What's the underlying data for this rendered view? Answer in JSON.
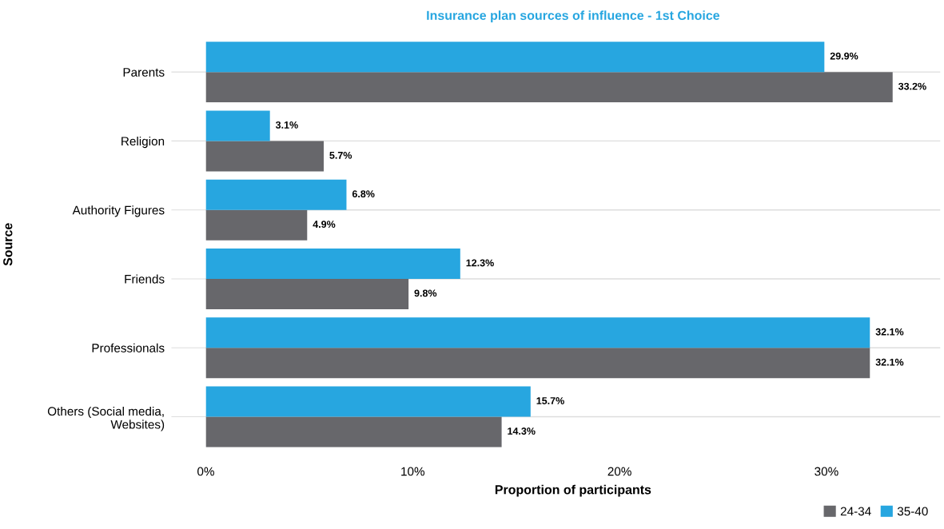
{
  "chart_data": {
    "type": "bar",
    "orientation": "horizontal",
    "title": "Insurance plan sources of influence - 1st Choice",
    "xlabel": "Proportion of participants",
    "ylabel": "Source",
    "categories": [
      "Parents",
      "Religion",
      "Authority Figures",
      "Friends",
      "Professionals",
      "Others (Social media,\nWebsites)"
    ],
    "series": [
      {
        "name": "24-34",
        "color": "#67676b",
        "values": [
          33.2,
          5.7,
          4.9,
          9.8,
          32.1,
          14.3
        ],
        "value_labels": [
          "33.2%",
          "5.7%",
          "4.9%",
          "9.8%",
          "32.1%",
          "14.3%"
        ]
      },
      {
        "name": "35-40",
        "color": "#27a6e0",
        "values": [
          29.9,
          3.1,
          6.8,
          12.3,
          32.1,
          15.7
        ],
        "value_labels": [
          "29.9%",
          "3.1%",
          "6.8%",
          "12.3%",
          "32.1%",
          "15.7%"
        ]
      }
    ],
    "xlim": [
      0,
      35.5
    ],
    "xticks": [
      {
        "value": 0,
        "label": "0%"
      },
      {
        "value": 10,
        "label": "10%"
      },
      {
        "value": 20,
        "label": "20%"
      },
      {
        "value": 30,
        "label": "30%"
      }
    ],
    "grid": "y",
    "legend": "bottom right"
  }
}
